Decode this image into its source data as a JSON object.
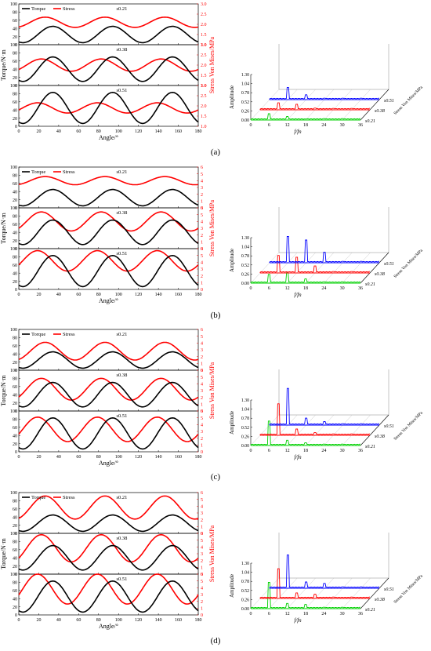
{
  "panel_labels": [
    "(a)",
    "(b)",
    "(c)",
    "(d)"
  ],
  "colors": {
    "torque": "#000000",
    "stress": "#ff0000",
    "s021": "#00d000",
    "s038": "#ff0000",
    "s051": "#0000ff",
    "axis": "#000000"
  },
  "chart_data": [
    {
      "type": "line",
      "panel": "(a)",
      "xlabel": "Angle/°",
      "ylabel": "Torque/N·m",
      "y2label": "Stress Von Mises/MPa",
      "x_range": [
        0,
        180
      ],
      "x_ticks": [
        0,
        20,
        40,
        60,
        80,
        100,
        120,
        140,
        160,
        180
      ],
      "legend": [
        "Torque",
        "Stress"
      ],
      "subplots": [
        {
          "label": "s0.21",
          "ylim": [
            0,
            100
          ],
          "y_ticks": [
            0,
            20,
            40,
            60,
            80,
            100
          ],
          "y2lim": [
            1.0,
            3.0
          ],
          "y2_ticks": [
            1.0,
            1.5,
            2.0,
            2.5,
            3.0
          ],
          "torque_mean": 25,
          "torque_amp": 20,
          "stress_mean": 2.1,
          "stress_amp": 0.25
        },
        {
          "label": "s0.38",
          "ylim": [
            0,
            100
          ],
          "y_ticks": [
            0,
            20,
            40,
            60,
            80,
            100
          ],
          "y2lim": [
            1.0,
            3.0
          ],
          "y2_ticks": [
            1.0,
            1.5,
            2.0,
            2.5,
            3.0
          ],
          "torque_mean": 40,
          "torque_amp": 30,
          "stress_mean": 2.0,
          "stress_amp": 0.3
        },
        {
          "label": "s0.51",
          "ylim": [
            0,
            100
          ],
          "y_ticks": [
            0,
            20,
            40,
            60,
            80,
            100
          ],
          "y2lim": [
            1.0,
            3.0
          ],
          "y2_ticks": [
            1.0,
            1.5,
            2.0,
            2.5,
            3.0
          ],
          "torque_mean": 45,
          "torque_amp": 38,
          "stress_mean": 1.9,
          "stress_amp": 0.25
        }
      ],
      "spectrum": {
        "xlabel": "f/fn",
        "ylabel": "Amplitude",
        "zlabel": "Stress Von Mises/MPa",
        "x_ticks": [
          0,
          6,
          12,
          18,
          24,
          30,
          36
        ],
        "y_ticks": [
          "0.00",
          "0.26",
          "0.52",
          "0.78",
          "1.04",
          "1.30"
        ],
        "series": [
          "s0.21",
          "s0.38",
          "s0.51"
        ],
        "peaks": [
          {
            "x": [
              6,
              12,
              18
            ],
            "h": [
              0.18,
              0.1,
              0.03
            ]
          },
          {
            "x": [
              6,
              12,
              18
            ],
            "h": [
              0.2,
              0.16,
              0.05
            ]
          },
          {
            "x": [
              6,
              12,
              18
            ],
            "h": [
              0.35,
              0.14,
              0.04
            ]
          }
        ]
      }
    },
    {
      "type": "line",
      "panel": "(b)",
      "xlabel": "Angle/°",
      "ylabel": "Torque/N·m",
      "y2label": "Stress Von Mises/MPa",
      "x_range": [
        0,
        180
      ],
      "x_ticks": [
        0,
        20,
        40,
        60,
        80,
        100,
        120,
        140,
        160,
        180
      ],
      "legend": [
        "Torque",
        "Stress"
      ],
      "subplots": [
        {
          "label": "s0.21",
          "ylim": [
            0,
            100
          ],
          "y_ticks": [
            0,
            20,
            40,
            60,
            80,
            100
          ],
          "y2lim": [
            0,
            6
          ],
          "y2_ticks": [
            0,
            1,
            2,
            3,
            4,
            5,
            6
          ],
          "torque_mean": 25,
          "torque_amp": 20,
          "stress_mean": 4.0,
          "stress_amp": 0.6
        },
        {
          "label": "s0.38",
          "ylim": [
            0,
            100
          ],
          "y_ticks": [
            0,
            20,
            40,
            60,
            80,
            100
          ],
          "y2lim": [
            0,
            6
          ],
          "y2_ticks": [
            0,
            1,
            2,
            3,
            4,
            5,
            6
          ],
          "torque_mean": 40,
          "torque_amp": 30,
          "stress_mean": 4.0,
          "stress_amp": 1.4
        },
        {
          "label": "s0.51",
          "ylim": [
            0,
            100
          ],
          "y_ticks": [
            0,
            20,
            40,
            60,
            80,
            100
          ],
          "y2lim": [
            0,
            6
          ],
          "y2_ticks": [
            0,
            1,
            2,
            3,
            4,
            5,
            6
          ],
          "torque_mean": 45,
          "torque_amp": 38,
          "stress_mean": 4.2,
          "stress_amp": 1.5
        }
      ],
      "spectrum": {
        "xlabel": "f/fn",
        "ylabel": "Amplitude",
        "zlabel": "Stress Von Mises/MPa",
        "x_ticks": [
          0,
          6,
          12,
          18,
          24,
          30,
          36
        ],
        "y_ticks": [
          "0.00",
          "0.26",
          "0.52",
          "0.78",
          "1.04",
          "1.30"
        ],
        "series": [
          "s0.21",
          "s0.38",
          "s0.51"
        ],
        "peaks": [
          {
            "x": [
              6,
              12,
              18
            ],
            "h": [
              0.25,
              0.3,
              0.12
            ]
          },
          {
            "x": [
              6,
              12,
              18
            ],
            "h": [
              0.5,
              0.45,
              0.2
            ]
          },
          {
            "x": [
              6,
              12,
              18
            ],
            "h": [
              0.75,
              0.65,
              0.3
            ]
          }
        ]
      }
    },
    {
      "type": "line",
      "panel": "(c)",
      "xlabel": "Angle/°",
      "ylabel": "Torque/N·m",
      "y2label": "Stress Von Mises/MPa",
      "x_range": [
        0,
        180
      ],
      "x_ticks": [
        0,
        20,
        40,
        60,
        80,
        100,
        120,
        140,
        160,
        180
      ],
      "legend": [
        "Torque",
        "Stress"
      ],
      "subplots": [
        {
          "label": "s0.21",
          "ylim": [
            0,
            100
          ],
          "y_ticks": [
            0,
            20,
            40,
            60,
            80,
            100
          ],
          "y2lim": [
            0,
            6
          ],
          "y2_ticks": [
            0,
            1,
            2,
            3,
            4,
            5,
            6
          ],
          "torque_mean": 25,
          "torque_amp": 20,
          "stress_mean": 2.8,
          "stress_amp": 1.3
        },
        {
          "label": "s0.38",
          "ylim": [
            0,
            100
          ],
          "y_ticks": [
            0,
            20,
            40,
            60,
            80,
            100
          ],
          "y2lim": [
            0,
            6
          ],
          "y2_ticks": [
            0,
            1,
            2,
            3,
            4,
            5,
            6
          ],
          "torque_mean": 40,
          "torque_amp": 30,
          "stress_mean": 3.2,
          "stress_amp": 1.6
        },
        {
          "label": "s0.51",
          "ylim": [
            0,
            100
          ],
          "y_ticks": [
            0,
            20,
            40,
            60,
            80,
            100
          ],
          "y2lim": [
            0,
            6
          ],
          "y2_ticks": [
            0,
            1,
            2,
            3,
            4,
            5,
            6
          ],
          "torque_mean": 45,
          "torque_amp": 38,
          "stress_mean": 3.3,
          "stress_amp": 1.8
        }
      ],
      "spectrum": {
        "xlabel": "f/fn",
        "ylabel": "Amplitude",
        "zlabel": "Stress Von Mises/MPa",
        "x_ticks": [
          0,
          6,
          12,
          18,
          24,
          30,
          36
        ],
        "y_ticks": [
          "0.00",
          "0.26",
          "0.52",
          "0.78",
          "1.04",
          "1.30"
        ],
        "series": [
          "s0.21",
          "s0.38",
          "s0.51"
        ],
        "peaks": [
          {
            "x": [
              6,
              12,
              18
            ],
            "h": [
              0.7,
              0.15,
              0.08
            ]
          },
          {
            "x": [
              6,
              12,
              18
            ],
            "h": [
              0.9,
              0.18,
              0.08
            ]
          },
          {
            "x": [
              6,
              12,
              18
            ],
            "h": [
              1.05,
              0.2,
              0.1
            ]
          }
        ]
      }
    },
    {
      "type": "line",
      "panel": "(d)",
      "xlabel": "Angle/°",
      "ylabel": "Torque/N·m",
      "y2label": "Stress Von Mises/MPa",
      "x_range": [
        0,
        180
      ],
      "x_ticks": [
        0,
        20,
        40,
        60,
        80,
        100,
        120,
        140,
        160,
        180
      ],
      "legend": [
        "Torque",
        "Stress"
      ],
      "subplots": [
        {
          "label": "s0.21",
          "ylim": [
            0,
            100
          ],
          "y_ticks": [
            0,
            20,
            40,
            60,
            80,
            100
          ],
          "y2lim": [
            0,
            6
          ],
          "y2_ticks": [
            0,
            1,
            2,
            3,
            4,
            5,
            6
          ],
          "torque_mean": 25,
          "torque_amp": 20,
          "stress_mean": 3.8,
          "stress_amp": 1.7
        },
        {
          "label": "s0.38",
          "ylim": [
            0,
            100
          ],
          "y_ticks": [
            0,
            20,
            40,
            60,
            80,
            100
          ],
          "y2lim": [
            0,
            6
          ],
          "y2_ticks": [
            0,
            1,
            2,
            3,
            4,
            5,
            6
          ],
          "torque_mean": 40,
          "torque_amp": 30,
          "stress_mean": 3.8,
          "stress_amp": 2.0
        },
        {
          "label": "s0.51",
          "ylim": [
            0,
            100
          ],
          "y_ticks": [
            0,
            20,
            40,
            60,
            80,
            100
          ],
          "y2lim": [
            0,
            6
          ],
          "y2_ticks": [
            0,
            1,
            2,
            3,
            4,
            5,
            6
          ],
          "torque_mean": 45,
          "torque_amp": 38,
          "stress_mean": 3.8,
          "stress_amp": 2.2
        }
      ],
      "spectrum": {
        "xlabel": "f/fn",
        "ylabel": "Amplitude",
        "zlabel": "Stress Von Mises/MPa",
        "x_ticks": [
          0,
          6,
          12,
          18,
          24,
          30,
          36
        ],
        "y_ticks": [
          "0.00",
          "0.26",
          "0.52",
          "0.78",
          "1.04",
          "1.30"
        ],
        "series": [
          "s0.21",
          "s0.38",
          "s0.51"
        ],
        "peaks": [
          {
            "x": [
              6,
              12,
              18
            ],
            "h": [
              0.75,
              0.15,
              0.12
            ]
          },
          {
            "x": [
              6,
              12,
              18
            ],
            "h": [
              0.85,
              0.16,
              0.12
            ]
          },
          {
            "x": [
              6,
              12,
              18
            ],
            "h": [
              0.95,
              0.18,
              0.14
            ]
          }
        ]
      }
    }
  ]
}
